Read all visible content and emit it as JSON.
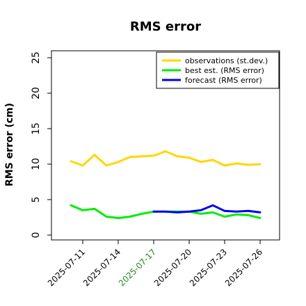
{
  "chart_data": {
    "type": "line",
    "title": "RMS error",
    "xlabel": "",
    "ylabel": "RMS error (cm)",
    "ylim": [
      0,
      26
    ],
    "y_ticks": [
      0,
      5,
      10,
      15,
      20,
      25
    ],
    "grid": false,
    "legend_position": "top-right",
    "x": [
      "2025-07-10",
      "2025-07-11",
      "2025-07-12",
      "2025-07-13",
      "2025-07-14",
      "2025-07-15",
      "2025-07-16",
      "2025-07-17",
      "2025-07-18",
      "2025-07-19",
      "2025-07-20",
      "2025-07-21",
      "2025-07-22",
      "2025-07-23",
      "2025-07-24",
      "2025-07-25",
      "2025-07-26"
    ],
    "x_tick_labels": [
      {
        "label": "2025-07-11",
        "color": "#000000"
      },
      {
        "label": "2025-07-14",
        "color": "#000000"
      },
      {
        "label": "2025-07-17",
        "color": "#228B22"
      },
      {
        "label": "2025-07-20",
        "color": "#000000"
      },
      {
        "label": "2025-07-23",
        "color": "#000000"
      },
      {
        "label": "2025-07-26",
        "color": "#000000"
      }
    ],
    "series": [
      {
        "name": "observations (st.dev.)",
        "color": "#FFD700",
        "values": [
          10.4,
          9.8,
          11.3,
          9.8,
          10.3,
          11.0,
          11.1,
          11.2,
          11.8,
          11.1,
          10.9,
          10.3,
          10.6,
          9.8,
          10.1,
          9.9,
          10.0
        ]
      },
      {
        "name": "best est. (RMS error)",
        "color": "#00EE00",
        "values": [
          4.2,
          3.5,
          3.7,
          2.6,
          2.4,
          2.6,
          3.0,
          3.3,
          3.3,
          3.3,
          3.3,
          3.0,
          3.2,
          2.6,
          2.9,
          2.8,
          2.4
        ]
      },
      {
        "name": "forecast (RMS error)",
        "color": "#0000EE",
        "x": [
          "2025-07-17",
          "2025-07-18",
          "2025-07-19",
          "2025-07-20",
          "2025-07-21",
          "2025-07-22",
          "2025-07-23",
          "2025-07-24",
          "2025-07-25",
          "2025-07-26"
        ],
        "values": [
          3.3,
          3.3,
          3.2,
          3.3,
          3.5,
          4.2,
          3.4,
          3.3,
          3.4,
          3.2
        ]
      }
    ]
  }
}
